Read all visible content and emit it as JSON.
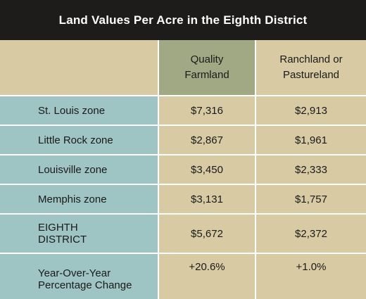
{
  "chart_data": {
    "type": "table",
    "title": "Land Values Per Acre in the Eighth District",
    "columns": [
      {
        "line1": "Quality",
        "line2": "Farmland"
      },
      {
        "line1": "Ranchland or",
        "line2": "Pastureland"
      }
    ],
    "rows": [
      {
        "label_lines": [
          "St. Louis zone"
        ],
        "values": [
          "$7,316",
          "$2,913"
        ]
      },
      {
        "label_lines": [
          "Little Rock zone"
        ],
        "values": [
          "$2,867",
          "$1,961"
        ]
      },
      {
        "label_lines": [
          "Louisville zone"
        ],
        "values": [
          "$3,450",
          "$2,333"
        ]
      },
      {
        "label_lines": [
          "Memphis zone"
        ],
        "values": [
          "$3,131",
          "$1,757"
        ]
      },
      {
        "label_lines": [
          "EIGHTH",
          "DISTRICT"
        ],
        "values": [
          "$5,672",
          "$2,372"
        ]
      },
      {
        "label_lines": [
          "Year-Over-Year",
          "Percentage Change"
        ],
        "values": [
          "+20.6%",
          "+1.0%"
        ]
      }
    ]
  }
}
